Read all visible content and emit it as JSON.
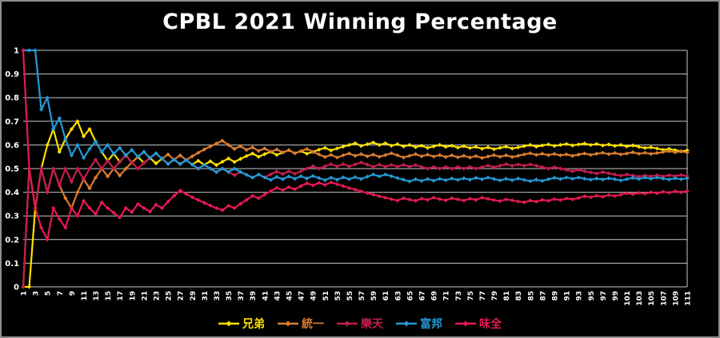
{
  "title": "CPBL 2021 Winning Percentage",
  "colors": {
    "background": "#000000",
    "gridline": "#c8c8c8",
    "axis_text": "#ffffff",
    "frame_border": "#8f8f8f",
    "title_text": "#ffffff"
  },
  "chart_data": {
    "type": "line",
    "title": "CPBL 2021 Winning Percentage",
    "xlabel": "",
    "ylabel": "",
    "x_start": 1,
    "x_end": 111,
    "ylim": [
      0,
      1
    ],
    "y_tick_step": 0.1,
    "grid": true,
    "marker": "diamond",
    "legend_position": "bottom",
    "y_tick_labels": [
      "0",
      "0.1",
      "0.2",
      "0.3",
      "0.4",
      "0.5",
      "0.6",
      "0.7",
      "0.8",
      "0.9",
      "1"
    ],
    "x_tick_labels": [
      "1",
      "3",
      "5",
      "7",
      "9",
      "11",
      "13",
      "15",
      "17",
      "19",
      "21",
      "23",
      "25",
      "27",
      "29",
      "31",
      "33",
      "35",
      "37",
      "39",
      "41",
      "43",
      "45",
      "47",
      "49",
      "51",
      "53",
      "55",
      "57",
      "59",
      "61",
      "63",
      "65",
      "67",
      "69",
      "71",
      "73",
      "75",
      "77",
      "79",
      "81",
      "83",
      "85",
      "87",
      "89",
      "91",
      "93",
      "95",
      "97",
      "99",
      "101",
      "103",
      "105",
      "107",
      "109",
      "111"
    ],
    "series": [
      {
        "name": "兄弟",
        "color": "#ffe100",
        "values": [
          0,
          0,
          0.333,
          0.5,
          0.6,
          0.667,
          0.571,
          0.625,
          0.667,
          0.7,
          0.636,
          0.667,
          0.615,
          0.571,
          0.533,
          0.563,
          0.529,
          0.556,
          0.526,
          0.55,
          0.524,
          0.545,
          0.522,
          0.542,
          0.52,
          0.538,
          0.519,
          0.536,
          0.517,
          0.533,
          0.516,
          0.531,
          0.515,
          0.529,
          0.543,
          0.528,
          0.541,
          0.553,
          0.564,
          0.55,
          0.561,
          0.571,
          0.558,
          0.568,
          0.578,
          0.565,
          0.574,
          0.563,
          0.571,
          0.58,
          0.588,
          0.577,
          0.585,
          0.593,
          0.6,
          0.607,
          0.596,
          0.603,
          0.61,
          0.6,
          0.607,
          0.597,
          0.603,
          0.594,
          0.6,
          0.591,
          0.597,
          0.588,
          0.594,
          0.6,
          0.592,
          0.597,
          0.589,
          0.595,
          0.587,
          0.592,
          0.584,
          0.59,
          0.582,
          0.588,
          0.593,
          0.585,
          0.59,
          0.595,
          0.6,
          0.593,
          0.598,
          0.602,
          0.596,
          0.6,
          0.604,
          0.598,
          0.602,
          0.606,
          0.6,
          0.604,
          0.598,
          0.602,
          0.596,
          0.6,
          0.594,
          0.598,
          0.592,
          0.587,
          0.59,
          0.585,
          0.579,
          0.583,
          0.578,
          0.573,
          0.577
        ]
      },
      {
        "name": "統一",
        "color": "#dd7e2e",
        "values": [
          0,
          0.5,
          0.333,
          0.5,
          0.4,
          0.5,
          0.429,
          0.375,
          0.333,
          0.4,
          0.455,
          0.417,
          0.462,
          0.5,
          0.467,
          0.5,
          0.471,
          0.5,
          0.526,
          0.55,
          0.571,
          0.545,
          0.565,
          0.542,
          0.56,
          0.538,
          0.556,
          0.536,
          0.552,
          0.567,
          0.581,
          0.594,
          0.606,
          0.618,
          0.6,
          0.583,
          0.595,
          0.579,
          0.59,
          0.575,
          0.585,
          0.571,
          0.581,
          0.568,
          0.578,
          0.565,
          0.574,
          0.583,
          0.571,
          0.56,
          0.549,
          0.558,
          0.547,
          0.556,
          0.564,
          0.554,
          0.561,
          0.552,
          0.559,
          0.55,
          0.557,
          0.565,
          0.556,
          0.547,
          0.554,
          0.561,
          0.552,
          0.559,
          0.551,
          0.557,
          0.549,
          0.556,
          0.548,
          0.554,
          0.547,
          0.553,
          0.545,
          0.551,
          0.557,
          0.55,
          0.556,
          0.549,
          0.554,
          0.56,
          0.565,
          0.558,
          0.563,
          0.557,
          0.562,
          0.556,
          0.56,
          0.554,
          0.559,
          0.564,
          0.558,
          0.563,
          0.567,
          0.561,
          0.566,
          0.56,
          0.564,
          0.569,
          0.563,
          0.567,
          0.562,
          0.566,
          0.57,
          0.574,
          0.569,
          0.573,
          0.568
        ]
      },
      {
        "name": "樂天",
        "color": "#c51e4d",
        "values": [
          0,
          0.5,
          0.333,
          0.5,
          0.4,
          0.5,
          0.429,
          0.5,
          0.444,
          0.5,
          0.455,
          0.5,
          0.538,
          0.5,
          0.533,
          0.5,
          0.529,
          0.556,
          0.526,
          0.5,
          0.524,
          0.545,
          0.565,
          0.542,
          0.52,
          0.538,
          0.519,
          0.536,
          0.517,
          0.5,
          0.516,
          0.5,
          0.485,
          0.5,
          0.486,
          0.472,
          0.486,
          0.474,
          0.462,
          0.475,
          0.463,
          0.476,
          0.488,
          0.477,
          0.489,
          0.478,
          0.489,
          0.5,
          0.51,
          0.5,
          0.51,
          0.519,
          0.509,
          0.519,
          0.509,
          0.518,
          0.526,
          0.517,
          0.508,
          0.517,
          0.508,
          0.516,
          0.508,
          0.516,
          0.508,
          0.515,
          0.507,
          0.5,
          0.507,
          0.5,
          0.507,
          0.5,
          0.507,
          0.5,
          0.507,
          0.5,
          0.506,
          0.513,
          0.506,
          0.512,
          0.519,
          0.512,
          0.518,
          0.512,
          0.518,
          0.512,
          0.506,
          0.5,
          0.506,
          0.5,
          0.495,
          0.489,
          0.495,
          0.489,
          0.484,
          0.479,
          0.485,
          0.48,
          0.475,
          0.47,
          0.475,
          0.471,
          0.466,
          0.471,
          0.467,
          0.472,
          0.467,
          0.472,
          0.468,
          0.473,
          0.468
        ]
      },
      {
        "name": "富邦",
        "color": "#2499d6",
        "values": [
          1,
          1,
          1,
          0.75,
          0.8,
          0.667,
          0.714,
          0.625,
          0.556,
          0.6,
          0.545,
          0.583,
          0.615,
          0.571,
          0.6,
          0.563,
          0.588,
          0.556,
          0.579,
          0.55,
          0.571,
          0.545,
          0.565,
          0.542,
          0.52,
          0.538,
          0.519,
          0.536,
          0.517,
          0.5,
          0.516,
          0.5,
          0.485,
          0.5,
          0.486,
          0.5,
          0.486,
          0.474,
          0.462,
          0.475,
          0.463,
          0.452,
          0.465,
          0.455,
          0.467,
          0.457,
          0.468,
          0.458,
          0.469,
          0.46,
          0.451,
          0.462,
          0.453,
          0.463,
          0.455,
          0.464,
          0.456,
          0.466,
          0.475,
          0.467,
          0.475,
          0.468,
          0.46,
          0.453,
          0.446,
          0.455,
          0.448,
          0.456,
          0.449,
          0.457,
          0.451,
          0.458,
          0.452,
          0.459,
          0.453,
          0.461,
          0.455,
          0.462,
          0.456,
          0.45,
          0.457,
          0.451,
          0.458,
          0.452,
          0.447,
          0.453,
          0.448,
          0.455,
          0.461,
          0.456,
          0.462,
          0.457,
          0.462,
          0.457,
          0.453,
          0.458,
          0.454,
          0.459,
          0.455,
          0.45,
          0.455,
          0.461,
          0.456,
          0.462,
          0.457,
          0.462,
          0.458,
          0.454,
          0.459,
          0.455,
          0.459
        ]
      },
      {
        "name": "味全",
        "color": "#e41a52",
        "values": [
          1,
          0.5,
          0.333,
          0.25,
          0.2,
          0.333,
          0.286,
          0.25,
          0.333,
          0.3,
          0.364,
          0.333,
          0.308,
          0.357,
          0.333,
          0.313,
          0.294,
          0.333,
          0.316,
          0.35,
          0.333,
          0.318,
          0.348,
          0.333,
          0.36,
          0.385,
          0.407,
          0.393,
          0.379,
          0.367,
          0.355,
          0.344,
          0.333,
          0.324,
          0.343,
          0.333,
          0.351,
          0.368,
          0.385,
          0.375,
          0.39,
          0.405,
          0.419,
          0.409,
          0.422,
          0.413,
          0.426,
          0.438,
          0.429,
          0.44,
          0.431,
          0.442,
          0.434,
          0.426,
          0.418,
          0.411,
          0.404,
          0.397,
          0.39,
          0.383,
          0.377,
          0.371,
          0.365,
          0.375,
          0.369,
          0.364,
          0.373,
          0.368,
          0.377,
          0.371,
          0.366,
          0.375,
          0.37,
          0.365,
          0.373,
          0.368,
          0.377,
          0.372,
          0.367,
          0.363,
          0.37,
          0.366,
          0.361,
          0.357,
          0.365,
          0.36,
          0.368,
          0.364,
          0.371,
          0.367,
          0.374,
          0.37,
          0.376,
          0.383,
          0.379,
          0.385,
          0.381,
          0.388,
          0.384,
          0.39,
          0.396,
          0.392,
          0.398,
          0.394,
          0.4,
          0.396,
          0.402,
          0.398,
          0.404,
          0.4,
          0.405
        ]
      }
    ]
  }
}
